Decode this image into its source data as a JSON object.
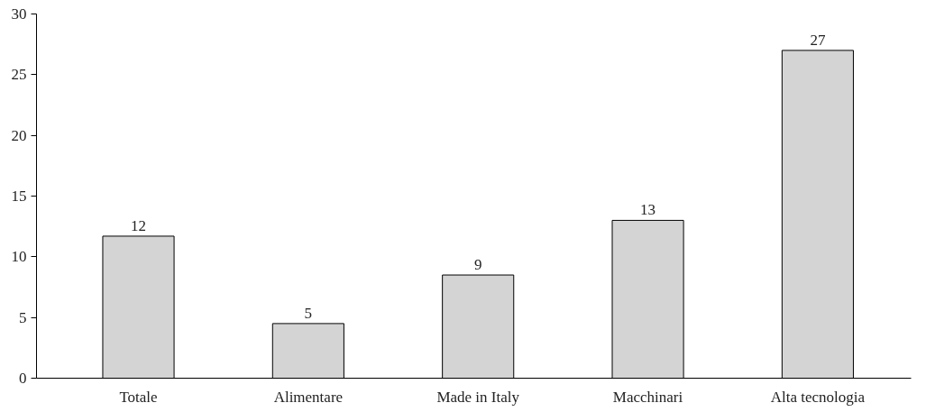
{
  "chart_data": {
    "type": "bar",
    "categories": [
      "Totale",
      "Alimentare",
      "Made in Italy",
      "Macchinari",
      "Alta tecnologia"
    ],
    "values": [
      11.7,
      4.5,
      8.5,
      13.0,
      27.0
    ],
    "value_labels": [
      "12",
      "5",
      "9",
      "13",
      "27"
    ],
    "color": "#d4d4d4",
    "ylim": [
      0,
      30
    ],
    "yticks": [
      0,
      5,
      10,
      15,
      20,
      25,
      30
    ],
    "grid": false
  }
}
